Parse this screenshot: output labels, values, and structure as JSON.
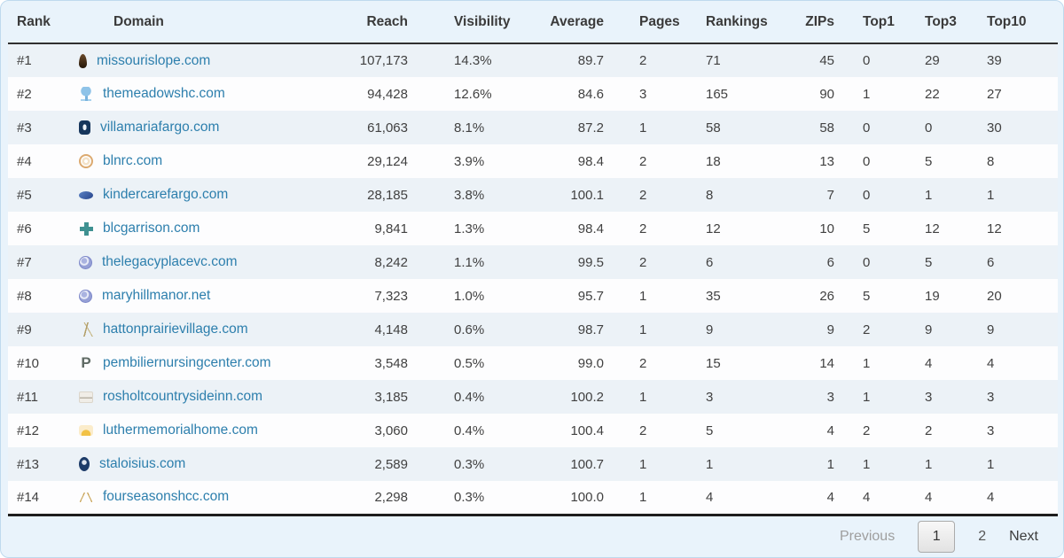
{
  "colors": {
    "link": "#2d7fad",
    "card_bg": "#e9f3fb",
    "odd_row_bg": "#ecf2f7",
    "header_rule": "#303030"
  },
  "table": {
    "columns": [
      "Rank",
      "Domain",
      "Reach",
      "Visibility",
      "Average",
      "Pages",
      "Rankings",
      "ZIPs",
      "Top1",
      "Top3",
      "Top10"
    ],
    "rows": [
      {
        "rank": "#1",
        "domain": "missourislope.com",
        "icon_class": "fav fav-feather",
        "icon_glyph": "",
        "reach": "107,173",
        "visibility": "14.3%",
        "average": "89.7",
        "pages": "2",
        "rankings": "71",
        "zips": "45",
        "top1": "0",
        "top3": "29",
        "top10": "39"
      },
      {
        "rank": "#2",
        "domain": "themeadowshc.com",
        "icon_class": "fav fav-tree",
        "icon_glyph": "",
        "reach": "94,428",
        "visibility": "12.6%",
        "average": "84.6",
        "pages": "3",
        "rankings": "165",
        "zips": "90",
        "top1": "1",
        "top3": "22",
        "top10": "27"
      },
      {
        "rank": "#3",
        "domain": "villamariafargo.com",
        "icon_class": "fav fav-crest",
        "icon_glyph": "",
        "reach": "61,063",
        "visibility": "8.1%",
        "average": "87.2",
        "pages": "1",
        "rankings": "58",
        "zips": "58",
        "top1": "0",
        "top3": "0",
        "top10": "30"
      },
      {
        "rank": "#4",
        "domain": "blnrc.com",
        "icon_class": "fav fav-ring",
        "icon_glyph": "",
        "reach": "29,124",
        "visibility": "3.9%",
        "average": "98.4",
        "pages": "2",
        "rankings": "18",
        "zips": "13",
        "top1": "0",
        "top3": "5",
        "top10": "8"
      },
      {
        "rank": "#5",
        "domain": "kindercarefargo.com",
        "icon_class": "fav fav-oval",
        "icon_glyph": "",
        "reach": "28,185",
        "visibility": "3.8%",
        "average": "100.1",
        "pages": "2",
        "rankings": "8",
        "zips": "7",
        "top1": "0",
        "top3": "1",
        "top10": "1"
      },
      {
        "rank": "#6",
        "domain": "blcgarrison.com",
        "icon_class": "fav fav-cross",
        "icon_glyph": "",
        "reach": "9,841",
        "visibility": "1.3%",
        "average": "98.4",
        "pages": "2",
        "rankings": "12",
        "zips": "10",
        "top1": "5",
        "top3": "12",
        "top10": "12"
      },
      {
        "rank": "#7",
        "domain": "thelegacyplacevc.com",
        "icon_class": "fav fav-globe",
        "icon_glyph": "",
        "reach": "8,242",
        "visibility": "1.1%",
        "average": "99.5",
        "pages": "2",
        "rankings": "6",
        "zips": "6",
        "top1": "0",
        "top3": "5",
        "top10": "6"
      },
      {
        "rank": "#8",
        "domain": "maryhillmanor.net",
        "icon_class": "fav fav-globe",
        "icon_glyph": "",
        "reach": "7,323",
        "visibility": "1.0%",
        "average": "95.7",
        "pages": "1",
        "rankings": "35",
        "zips": "26",
        "top1": "5",
        "top3": "19",
        "top10": "20"
      },
      {
        "rank": "#9",
        "domain": "hattonprairievillage.com",
        "icon_class": "fav fav-wheat",
        "icon_glyph": "",
        "reach": "4,148",
        "visibility": "0.6%",
        "average": "98.7",
        "pages": "1",
        "rankings": "9",
        "zips": "9",
        "top1": "2",
        "top3": "9",
        "top10": "9"
      },
      {
        "rank": "#10",
        "domain": "pembiliernursingcenter.com",
        "icon_class": "fav fav-letter",
        "icon_glyph": "P",
        "reach": "3,548",
        "visibility": "0.5%",
        "average": "99.0",
        "pages": "2",
        "rankings": "15",
        "zips": "14",
        "top1": "1",
        "top3": "4",
        "top10": "4"
      },
      {
        "rank": "#11",
        "domain": "rosholtcountrysideinn.com",
        "icon_class": "fav fav-sketch",
        "icon_glyph": "",
        "reach": "3,185",
        "visibility": "0.4%",
        "average": "100.2",
        "pages": "1",
        "rankings": "3",
        "zips": "3",
        "top1": "1",
        "top3": "3",
        "top10": "3"
      },
      {
        "rank": "#12",
        "domain": "luthermemorialhome.com",
        "icon_class": "fav fav-sunrise",
        "icon_glyph": "",
        "reach": "3,060",
        "visibility": "0.4%",
        "average": "100.4",
        "pages": "2",
        "rankings": "5",
        "zips": "4",
        "top1": "2",
        "top3": "2",
        "top10": "3"
      },
      {
        "rank": "#13",
        "domain": "staloisius.com",
        "icon_class": "fav fav-crest-oval",
        "icon_glyph": "",
        "reach": "2,589",
        "visibility": "0.3%",
        "average": "100.7",
        "pages": "1",
        "rankings": "1",
        "zips": "1",
        "top1": "1",
        "top3": "1",
        "top10": "1"
      },
      {
        "rank": "#14",
        "domain": "fourseasonshcc.com",
        "icon_class": "fav fav-roof",
        "icon_glyph": "",
        "reach": "2,298",
        "visibility": "0.3%",
        "average": "100.0",
        "pages": "1",
        "rankings": "4",
        "zips": "4",
        "top1": "4",
        "top3": "4",
        "top10": "4"
      }
    ]
  },
  "pagination": {
    "previous_label": "Previous",
    "page1": "1",
    "page2": "2",
    "next_label": "Next",
    "current_page": "1"
  }
}
